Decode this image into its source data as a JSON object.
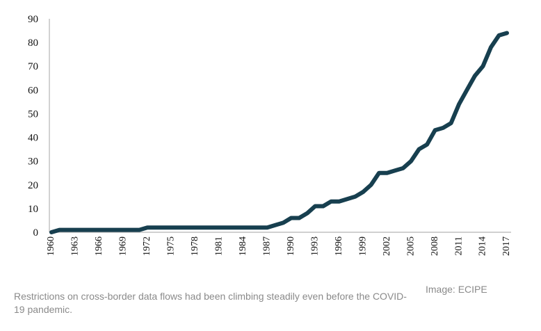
{
  "chart_data": {
    "type": "line",
    "title": "",
    "xlabel": "",
    "ylabel": "",
    "ylim": [
      0,
      90
    ],
    "xlim": [
      1960,
      2017
    ],
    "yticks": [
      "0",
      "10",
      "20",
      "30",
      "40",
      "50",
      "60",
      "70",
      "80",
      "90"
    ],
    "xticks": [
      "1960",
      "1963",
      "1966",
      "1969",
      "1972",
      "1975",
      "1978",
      "1981",
      "1984",
      "1987",
      "1990",
      "1993",
      "1996",
      "1999",
      "2002",
      "2005",
      "2008",
      "2011",
      "2014",
      "2017"
    ],
    "grid": false,
    "legend": "none",
    "line_color": "#173f4f",
    "series": [
      {
        "x": [
          1960,
          1961,
          1962,
          1963,
          1964,
          1965,
          1966,
          1967,
          1968,
          1969,
          1970,
          1971,
          1972,
          1973,
          1974,
          1975,
          1976,
          1977,
          1978,
          1979,
          1980,
          1981,
          1982,
          1983,
          1984,
          1985,
          1986,
          1987,
          1988,
          1989,
          1990,
          1991,
          1992,
          1993,
          1994,
          1995,
          1996,
          1997,
          1998,
          1999,
          2000,
          2001,
          2002,
          2003,
          2004,
          2005,
          2006,
          2007,
          2008,
          2009,
          2010,
          2011,
          2012,
          2013,
          2014,
          2015,
          2016,
          2017
        ],
        "values": [
          0,
          1,
          1,
          1,
          1,
          1,
          1,
          1,
          1,
          1,
          1,
          1,
          2,
          2,
          2,
          2,
          2,
          2,
          2,
          2,
          2,
          2,
          2,
          2,
          2,
          2,
          2,
          2,
          3,
          4,
          6,
          6,
          8,
          11,
          11,
          13,
          13,
          14,
          15,
          17,
          20,
          25,
          25,
          26,
          27,
          30,
          35,
          37,
          43,
          44,
          46,
          54,
          60,
          66,
          70,
          78,
          83,
          84
        ]
      }
    ]
  },
  "caption": "Restrictions on cross-border data flows had been climbing steadily even before the COVID-19 pandemic.",
  "credit": "Image: ECIPE"
}
